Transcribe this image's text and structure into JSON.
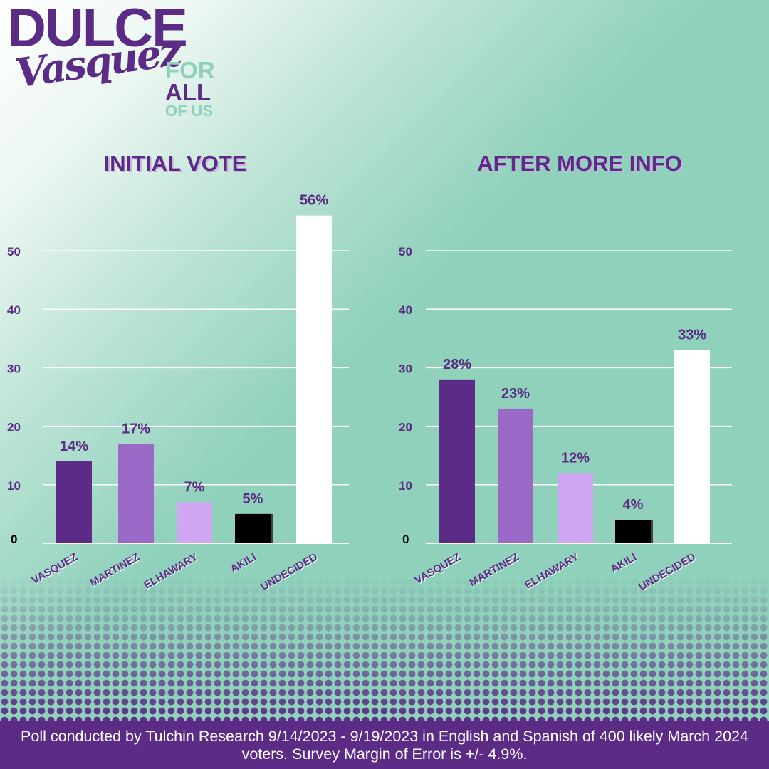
{
  "logo": {
    "line1": "DULCE",
    "line2": "Vasquez",
    "tag1": "FOR",
    "tag2": "ALL",
    "tag3": "OF US"
  },
  "colors": {
    "purple_dark": "#5b2b86",
    "purple_mid": "#9b6ac9",
    "purple_light": "#d0a6f3",
    "black": "#000000",
    "white": "#ffffff",
    "mint": "#8fd1bb"
  },
  "footer": {
    "text": "Poll conducted by Tulchin Research 9/14/2023 - 9/19/2023 in English and Spanish of 400 likely March 2024 voters. Survey Margin of Error is +/- 4.9%."
  },
  "chart_data": [
    {
      "type": "bar",
      "title": "INITIAL VOTE",
      "categories": [
        "VASQUEZ",
        "MARTINEZ",
        "ELHAWARY",
        "AKILI",
        "UNDECIDED"
      ],
      "values": [
        14,
        17,
        7,
        5,
        56
      ],
      "data_labels": [
        "14%",
        "17%",
        "7%",
        "5%",
        "56%"
      ],
      "bar_colors": [
        "#5b2b86",
        "#9b6ac9",
        "#d0a6f3",
        "#000000",
        "#ffffff"
      ],
      "yticks": [
        "0",
        "10",
        "20",
        "30",
        "40",
        "50"
      ],
      "ylim": [
        0,
        50
      ],
      "grid": true,
      "xlabel": "",
      "ylabel": ""
    },
    {
      "type": "bar",
      "title": "AFTER MORE INFO",
      "categories": [
        "VASQUEZ",
        "MARTINEZ",
        "ELHAWARY",
        "AKILI",
        "UNDECIDED"
      ],
      "values": [
        28,
        23,
        12,
        4,
        33
      ],
      "data_labels": [
        "28%",
        "23%",
        "12%",
        "4%",
        "33%"
      ],
      "bar_colors": [
        "#5b2b86",
        "#9b6ac9",
        "#d0a6f3",
        "#000000",
        "#ffffff"
      ],
      "yticks": [
        "0",
        "10",
        "20",
        "30",
        "40",
        "50"
      ],
      "ylim": [
        0,
        50
      ],
      "grid": true,
      "xlabel": "",
      "ylabel": ""
    }
  ]
}
